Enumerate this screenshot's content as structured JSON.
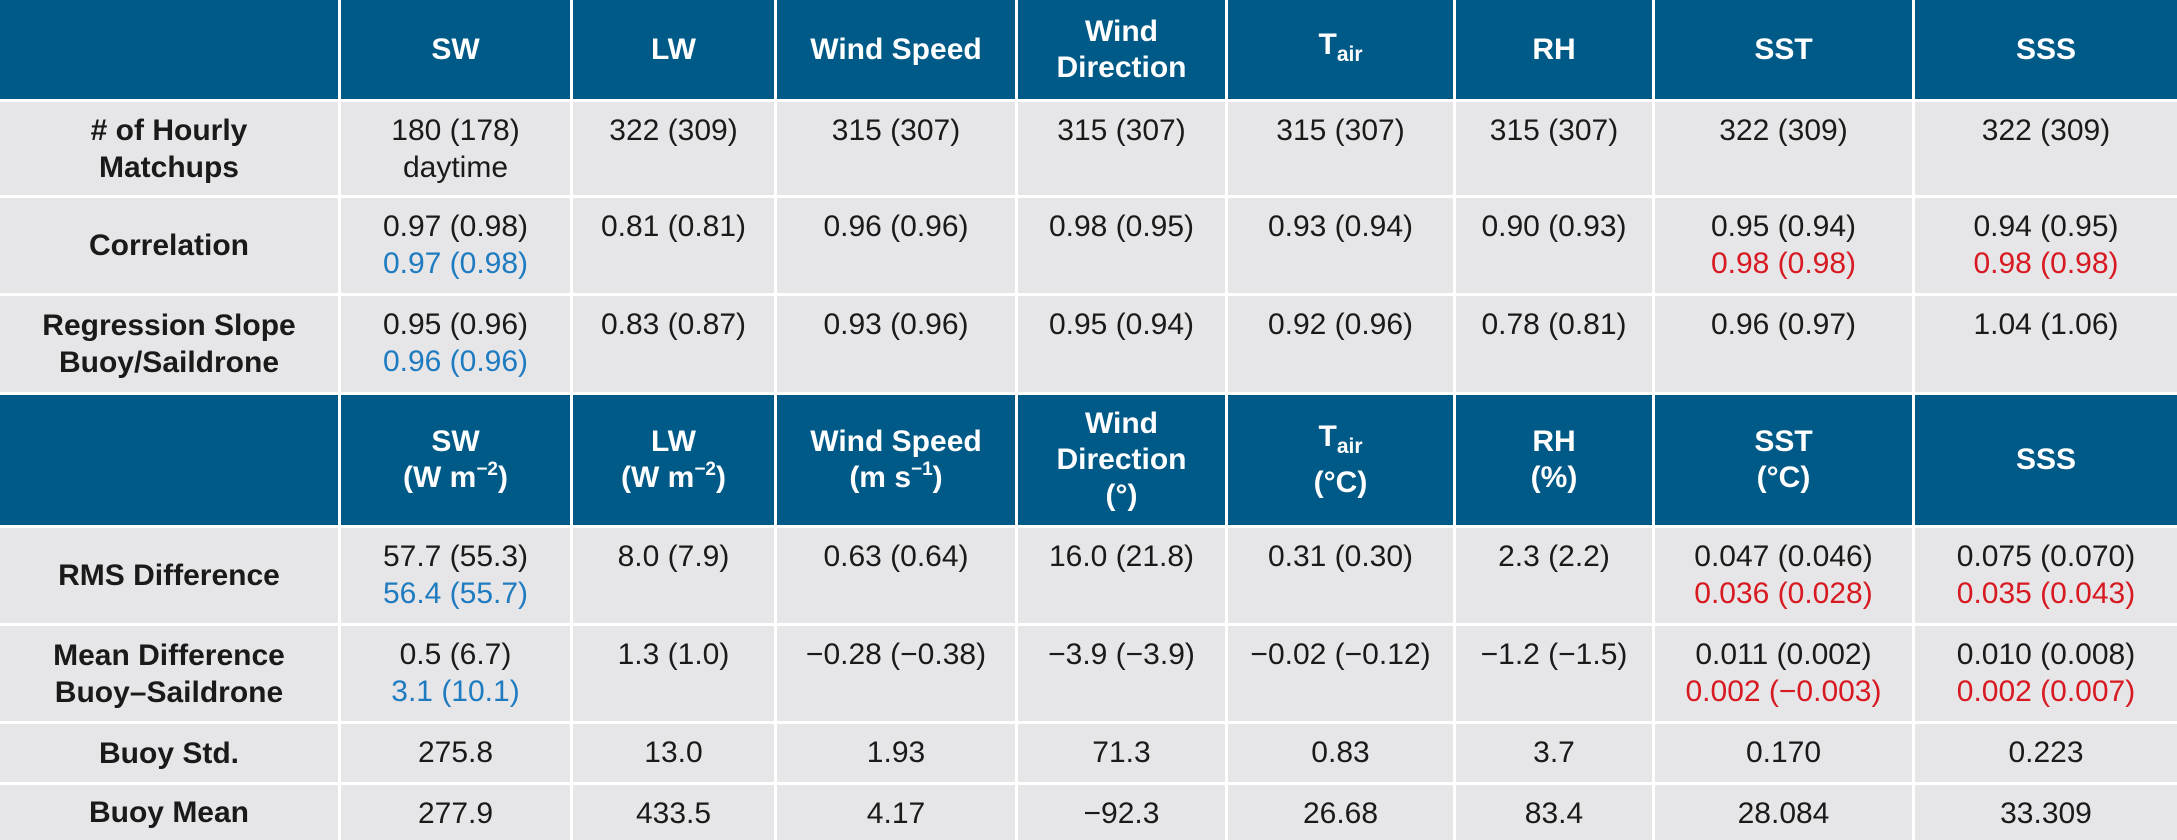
{
  "sections": [
    {
      "header": [
        [
          [
            {
              "text": "SW"
            }
          ]
        ],
        [
          [
            {
              "text": "LW"
            }
          ]
        ],
        [
          [
            {
              "text": "Wind Speed"
            }
          ]
        ],
        [
          [
            {
              "text": "Wind"
            }
          ],
          [
            {
              "text": "Direction"
            }
          ]
        ],
        [
          [
            {
              "text": "T"
            },
            {
              "text": "air",
              "script": "sub"
            }
          ]
        ],
        [
          [
            {
              "text": "RH"
            }
          ]
        ],
        [
          [
            {
              "text": "SST"
            }
          ]
        ],
        [
          [
            {
              "text": "SSS"
            }
          ]
        ]
      ],
      "rows": [
        {
          "label": [
            "# of Hourly",
            "Matchups"
          ],
          "cells": [
            [
              {
                "text": "180 (178)"
              },
              {
                "text": "daytime"
              }
            ],
            [
              {
                "text": "322 (309)"
              }
            ],
            [
              {
                "text": "315 (307)"
              }
            ],
            [
              {
                "text": "315 (307)"
              }
            ],
            [
              {
                "text": "315 (307)"
              }
            ],
            [
              {
                "text": "315 (307)"
              }
            ],
            [
              {
                "text": "322 (309)"
              }
            ],
            [
              {
                "text": "322 (309)"
              }
            ]
          ]
        },
        {
          "label": [
            "Correlation"
          ],
          "cells": [
            [
              {
                "text": "0.97 (0.98)"
              },
              {
                "text": "0.97 (0.98)",
                "color": "#1f7bc0"
              }
            ],
            [
              {
                "text": "0.81 (0.81)"
              }
            ],
            [
              {
                "text": "0.96 (0.96)"
              }
            ],
            [
              {
                "text": "0.98 (0.95)"
              }
            ],
            [
              {
                "text": "0.93 (0.94)"
              }
            ],
            [
              {
                "text": "0.90 (0.93)"
              }
            ],
            [
              {
                "text": "0.95 (0.94)"
              },
              {
                "text": "0.98 (0.98)",
                "color": "#d71a21"
              }
            ],
            [
              {
                "text": "0.94 (0.95)"
              },
              {
                "text": "0.98 (0.98)",
                "color": "#d71a21"
              }
            ]
          ]
        },
        {
          "label": [
            "Regression Slope",
            "Buoy/Saildrone"
          ],
          "cells": [
            [
              {
                "text": "0.95 (0.96)"
              },
              {
                "text": "0.96 (0.96)",
                "color": "#1f7bc0"
              }
            ],
            [
              {
                "text": "0.83 (0.87)"
              }
            ],
            [
              {
                "text": "0.93 (0.96)"
              }
            ],
            [
              {
                "text": "0.95 (0.94)"
              }
            ],
            [
              {
                "text": "0.92 (0.96)"
              }
            ],
            [
              {
                "text": "0.78 (0.81)"
              }
            ],
            [
              {
                "text": "0.96 (0.97)"
              }
            ],
            [
              {
                "text": "1.04 (1.06)"
              }
            ]
          ]
        }
      ]
    },
    {
      "header": [
        [
          [
            {
              "text": "SW"
            }
          ],
          [
            {
              "text": "(W m"
            },
            {
              "text": "−2",
              "script": "sup"
            },
            {
              "text": ")"
            }
          ]
        ],
        [
          [
            {
              "text": "LW"
            }
          ],
          [
            {
              "text": "(W m"
            },
            {
              "text": "−2",
              "script": "sup"
            },
            {
              "text": ")"
            }
          ]
        ],
        [
          [
            {
              "text": "Wind Speed"
            }
          ],
          [
            {
              "text": "(m s"
            },
            {
              "text": "−1",
              "script": "sup"
            },
            {
              "text": ")"
            }
          ]
        ],
        [
          [
            {
              "text": "Wind"
            }
          ],
          [
            {
              "text": "Direction"
            }
          ],
          [
            {
              "text": "(°)"
            }
          ]
        ],
        [
          [
            {
              "text": "T"
            },
            {
              "text": "air",
              "script": "sub"
            }
          ],
          [
            {
              "text": "(°C)"
            }
          ]
        ],
        [
          [
            {
              "text": "RH"
            }
          ],
          [
            {
              "text": "(%)"
            }
          ]
        ],
        [
          [
            {
              "text": "SST"
            }
          ],
          [
            {
              "text": "(°C)"
            }
          ]
        ],
        [
          [
            {
              "text": "SSS"
            }
          ]
        ]
      ],
      "rows": [
        {
          "label": [
            "RMS Difference"
          ],
          "cells": [
            [
              {
                "text": "57.7 (55.3)"
              },
              {
                "text": "56.4 (55.7)",
                "color": "#1f7bc0"
              }
            ],
            [
              {
                "text": "8.0 (7.9)"
              }
            ],
            [
              {
                "text": "0.63 (0.64)"
              }
            ],
            [
              {
                "text": "16.0 (21.8)"
              }
            ],
            [
              {
                "text": "0.31 (0.30)"
              }
            ],
            [
              {
                "text": "2.3 (2.2)"
              }
            ],
            [
              {
                "text": "0.047 (0.046)"
              },
              {
                "text": "0.036 (0.028)",
                "color": "#d71a21"
              }
            ],
            [
              {
                "text": "0.075 (0.070)"
              },
              {
                "text": "0.035 (0.043)",
                "color": "#d71a21"
              }
            ]
          ]
        },
        {
          "label": [
            "Mean Difference",
            "Buoy–Saildrone"
          ],
          "cells": [
            [
              {
                "text": "0.5 (6.7)"
              },
              {
                "text": "3.1 (10.1)",
                "color": "#1f7bc0"
              }
            ],
            [
              {
                "text": "1.3 (1.0)"
              }
            ],
            [
              {
                "text": "−0.28 (−0.38)"
              }
            ],
            [
              {
                "text": "−3.9 (−3.9)"
              }
            ],
            [
              {
                "text": "−0.02 (−0.12)"
              }
            ],
            [
              {
                "text": "−1.2 (−1.5)"
              }
            ],
            [
              {
                "text": "0.011 (0.002)"
              },
              {
                "text": "0.002 (−0.003)",
                "color": "#d71a21"
              }
            ],
            [
              {
                "text": "0.010 (0.008)"
              },
              {
                "text": "0.002 (0.007)",
                "color": "#d71a21"
              }
            ]
          ]
        },
        {
          "label": [
            "Buoy Std."
          ],
          "cells": [
            [
              {
                "text": "275.8"
              }
            ],
            [
              {
                "text": "13.0"
              }
            ],
            [
              {
                "text": "1.93"
              }
            ],
            [
              {
                "text": "71.3"
              }
            ],
            [
              {
                "text": "0.83"
              }
            ],
            [
              {
                "text": "3.7"
              }
            ],
            [
              {
                "text": "0.170"
              }
            ],
            [
              {
                "text": "0.223"
              }
            ]
          ]
        },
        {
          "label": [
            "Buoy Mean"
          ],
          "cells": [
            [
              {
                "text": "277.9"
              }
            ],
            [
              {
                "text": "433.5"
              }
            ],
            [
              {
                "text": "4.17"
              }
            ],
            [
              {
                "text": "−92.3"
              }
            ],
            [
              {
                "text": "26.68"
              }
            ],
            [
              {
                "text": "83.4"
              }
            ],
            [
              {
                "text": "28.084"
              }
            ],
            [
              {
                "text": "33.309"
              }
            ]
          ]
        }
      ]
    }
  ]
}
